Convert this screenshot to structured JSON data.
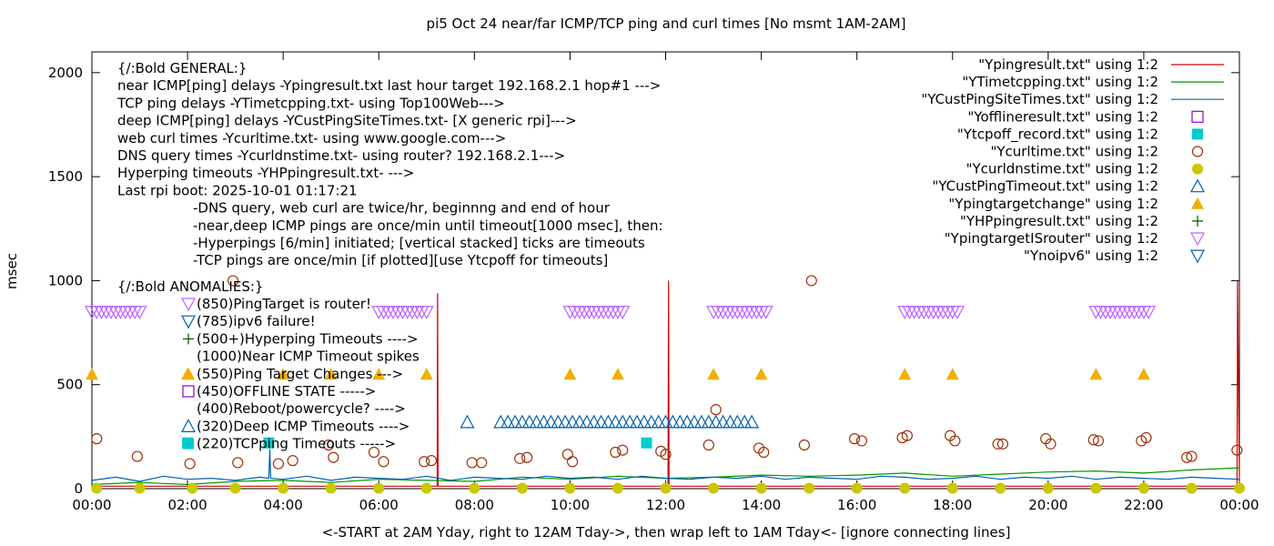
{
  "chart_data": {
    "type": "scatter",
    "title": "pi5 Oct 24  near/far ICMP/TCP ping and curl times [No msmt 1AM-2AM]",
    "xlabel": "<-START at 2AM Yday, right to 12AM Tday->, then wrap left to 1AM Tday<- [ignore connecting lines]",
    "ylabel": "msec",
    "xlim": [
      0,
      24
    ],
    "ylim": [
      0,
      2100
    ],
    "grid": false,
    "legend_position": "top-right",
    "x_ticks": [
      {
        "v": 0,
        "label": "00:00"
      },
      {
        "v": 2,
        "label": "02:00"
      },
      {
        "v": 4,
        "label": "04:00"
      },
      {
        "v": 6,
        "label": "06:00"
      },
      {
        "v": 8,
        "label": "08:00"
      },
      {
        "v": 10,
        "label": "10:00"
      },
      {
        "v": 12,
        "label": "12:00"
      },
      {
        "v": 14,
        "label": "14:00"
      },
      {
        "v": 16,
        "label": "16:00"
      },
      {
        "v": 18,
        "label": "18:00"
      },
      {
        "v": 20,
        "label": "20:00"
      },
      {
        "v": 22,
        "label": "22:00"
      },
      {
        "v": 24,
        "label": "00:00"
      }
    ],
    "y_ticks": [
      {
        "v": 0,
        "label": "0"
      },
      {
        "v": 500,
        "label": "500"
      },
      {
        "v": 1000,
        "label": "1000"
      },
      {
        "v": 1500,
        "label": "1500"
      },
      {
        "v": 2000,
        "label": "2000"
      }
    ],
    "series": [
      {
        "name": "\"Ypingresult.txt\" using 1:2",
        "marker": "line",
        "color": "#cc0000",
        "x": [
          0,
          1.0,
          2.0,
          4.0,
          6.0,
          7.0,
          7.22,
          7.23,
          7.24,
          8.0,
          10.0,
          12.05,
          12.06,
          12.07,
          14.0,
          16.0,
          18.0,
          20.0,
          22.0,
          23.9,
          23.95,
          23.96,
          24.0
        ],
        "y": [
          12,
          12,
          12,
          12,
          12,
          12,
          12,
          940,
          12,
          12,
          12,
          12,
          1000,
          12,
          12,
          12,
          12,
          12,
          12,
          12,
          12,
          1000,
          12
        ]
      },
      {
        "name": "\"YTimetcpping.txt\" using 1:2",
        "marker": "line",
        "color": "#009900",
        "x": [
          0,
          1.0,
          1.5,
          2.0,
          3.0,
          4.0,
          5.0,
          6.0,
          7.0,
          8.0,
          9.0,
          10.0,
          11.0,
          12.0,
          13.0,
          14.0,
          15.0,
          16.0,
          17.0,
          18.0,
          19.0,
          20.0,
          21.0,
          22.0,
          23.0,
          24.0
        ],
        "y": [
          20,
          30,
          25,
          20,
          35,
          40,
          30,
          45,
          40,
          35,
          55,
          45,
          60,
          50,
          55,
          65,
          60,
          65,
          75,
          60,
          70,
          80,
          85,
          75,
          90,
          100
        ]
      },
      {
        "name": "\"YCustPingSiteTimes.txt\" using 1:2",
        "marker": "line",
        "color": "#0060ad",
        "x": [
          0,
          0.5,
          1.0,
          1.5,
          2.0,
          2.5,
          3.0,
          3.5,
          3.7,
          3.72,
          3.74,
          4.0,
          4.5,
          5.0,
          5.5,
          6.0,
          6.5,
          7.0,
          7.5,
          8.0,
          8.5,
          9.0,
          9.5,
          10.0,
          10.5,
          11.0,
          11.5,
          12.0,
          12.5,
          13.0,
          13.5,
          14.0,
          14.5,
          15.0,
          15.5,
          16.0,
          16.5,
          17.0,
          17.5,
          18.0,
          18.5,
          19.0,
          19.5,
          20.0,
          20.5,
          21.0,
          21.5,
          22.0,
          22.5,
          23.0,
          23.5,
          24.0
        ],
        "y": [
          40,
          55,
          35,
          60,
          45,
          50,
          40,
          55,
          50,
          190,
          50,
          45,
          60,
          40,
          55,
          50,
          45,
          60,
          40,
          55,
          50,
          45,
          60,
          50,
          55,
          45,
          60,
          50,
          45,
          55,
          50,
          60,
          45,
          55,
          50,
          45,
          60,
          55,
          45,
          50,
          60,
          45,
          55,
          50,
          60,
          45,
          55,
          50,
          45,
          55,
          50,
          45
        ]
      },
      {
        "name": "\"Yofflineresult.txt\" using 1:2",
        "marker": "open-square",
        "color": "#9400d3",
        "x": [],
        "y": []
      },
      {
        "name": "\"Ytcpoff_record.txt\" using 1:2",
        "marker": "filled-square",
        "color": "#00cccc",
        "x": [
          2.0,
          3.7,
          11.6
        ],
        "y": [
          220,
          220,
          220
        ]
      },
      {
        "name": "\"Ycurltime.txt\" using 1:2",
        "marker": "open-circle",
        "color": "#a0320a",
        "x": [
          0.1,
          0.95,
          2.05,
          2.95,
          3.05,
          3.9,
          4.2,
          4.95,
          5.05,
          5.9,
          6.1,
          6.95,
          7.1,
          7.95,
          8.15,
          8.95,
          9.1,
          9.95,
          10.05,
          10.95,
          11.1,
          11.9,
          12.0,
          12.9,
          13.05,
          13.95,
          14.05,
          14.9,
          15.05,
          15.95,
          16.1,
          16.95,
          17.05,
          17.95,
          18.05,
          18.95,
          19.05,
          19.95,
          20.05,
          20.95,
          21.05,
          21.95,
          22.05,
          22.9,
          23.0,
          23.95
        ],
        "y": [
          240,
          155,
          120,
          1000,
          125,
          120,
          135,
          210,
          150,
          175,
          130,
          130,
          135,
          125,
          125,
          145,
          150,
          165,
          130,
          175,
          185,
          180,
          165,
          210,
          380,
          195,
          175,
          210,
          1000,
          240,
          230,
          245,
          255,
          255,
          230,
          215,
          215,
          240,
          215,
          235,
          230,
          230,
          245,
          150,
          155,
          185
        ]
      },
      {
        "name": "\"Ycurldnstime.txt\" using 1:2",
        "marker": "filled-circle",
        "color": "#c8c800",
        "x": [
          0.1,
          1.0,
          2.1,
          3.0,
          4.0,
          5.0,
          6.0,
          7.0,
          8.0,
          9.0,
          10.0,
          11.0,
          12.0,
          13.0,
          14.0,
          15.0,
          16.0,
          17.0,
          18.0,
          19.0,
          20.0,
          21.0,
          22.0,
          23.0,
          24.0
        ],
        "y": [
          2,
          2,
          2,
          2,
          2,
          2,
          2,
          2,
          2,
          2,
          2,
          2,
          2,
          2,
          2,
          2,
          2,
          2,
          2,
          2,
          2,
          2,
          2,
          2,
          2
        ]
      },
      {
        "name": "\"YCustPingTimeout.txt\" using 1:2",
        "marker": "open-triangle-up",
        "color": "#0060ad",
        "x": [
          7.85,
          8.55,
          8.7,
          8.85,
          9.0,
          9.15,
          9.3,
          9.45,
          9.6,
          9.75,
          9.9,
          10.05,
          10.2,
          10.35,
          10.5,
          10.65,
          10.8,
          10.95,
          11.1,
          11.25,
          11.4,
          11.55,
          11.7,
          11.85,
          12.0,
          12.15,
          12.3,
          12.45,
          12.6,
          12.75,
          12.9,
          13.05,
          13.2,
          13.35,
          13.5,
          13.65,
          13.8
        ],
        "y": [
          320,
          320,
          320,
          320,
          320,
          320,
          320,
          320,
          320,
          320,
          320,
          320,
          320,
          320,
          320,
          320,
          320,
          320,
          320,
          320,
          320,
          320,
          320,
          320,
          320,
          320,
          320,
          320,
          320,
          320,
          320,
          320,
          320,
          320,
          320,
          320,
          320
        ]
      },
      {
        "name": "\"Ypingtargetchange\" using 1:2",
        "marker": "filled-triangle-up",
        "color": "#f0b000",
        "x": [
          0,
          2.0,
          4.0,
          5.0,
          6.0,
          7.0,
          10.0,
          11.0,
          13.0,
          14.0,
          17.0,
          18.0,
          21.0,
          22.0
        ],
        "y": [
          550,
          550,
          550,
          550,
          550,
          550,
          550,
          550,
          550,
          550,
          550,
          550,
          550,
          550
        ]
      },
      {
        "name": "\"YHPpingresult.txt\" using 1:2",
        "marker": "plus",
        "color": "#006400",
        "x": [],
        "y": []
      },
      {
        "name": "\"YpingtargetISrouter\" using 1:2",
        "marker": "open-triangle-down",
        "color": "#bb66ff",
        "x": [
          0,
          0.1,
          0.2,
          0.3,
          0.4,
          0.5,
          0.6,
          0.7,
          0.8,
          0.9,
          1.0,
          6.0,
          6.1,
          6.2,
          6.3,
          6.4,
          6.5,
          6.6,
          6.7,
          6.8,
          6.9,
          7.0,
          10.0,
          10.1,
          10.2,
          10.3,
          10.4,
          10.5,
          10.6,
          10.7,
          10.8,
          10.9,
          11.0,
          11.1,
          13.0,
          13.1,
          13.2,
          13.3,
          13.4,
          13.5,
          13.6,
          13.7,
          13.8,
          13.9,
          14.0,
          14.1,
          17.0,
          17.1,
          17.2,
          17.3,
          17.4,
          17.5,
          17.6,
          17.7,
          17.8,
          17.9,
          18.0,
          18.1,
          21.0,
          21.1,
          21.2,
          21.3,
          21.4,
          21.5,
          21.6,
          21.7,
          21.8,
          21.9,
          22.0,
          22.1
        ],
        "y": [
          850,
          850,
          850,
          850,
          850,
          850,
          850,
          850,
          850,
          850,
          850,
          850,
          850,
          850,
          850,
          850,
          850,
          850,
          850,
          850,
          850,
          850,
          850,
          850,
          850,
          850,
          850,
          850,
          850,
          850,
          850,
          850,
          850,
          850,
          850,
          850,
          850,
          850,
          850,
          850,
          850,
          850,
          850,
          850,
          850,
          850,
          850,
          850,
          850,
          850,
          850,
          850,
          850,
          850,
          850,
          850,
          850,
          850,
          850,
          850,
          850,
          850,
          850,
          850,
          850,
          850,
          850,
          850,
          850,
          850
        ]
      },
      {
        "name": "\"Ynoipv6\" using 1:2",
        "marker": "open-triangle-down",
        "color": "#0060ad",
        "x": [],
        "y": []
      }
    ],
    "annotations": {
      "general": [
        "{/:Bold GENERAL:}",
        "near ICMP[ping] delays -Ypingresult.txt last hour target 192.168.2.1 hop#1 --->",
        "TCP ping delays -YTimetcpping.txt- using Top100Web--->",
        "deep ICMP[ping] delays -YCustPingSiteTimes.txt- [X generic rpi]--->",
        "web curl times -Ycurltime.txt- using www.google.com--->",
        "DNS query times -Ycurldnstime.txt- using router? 192.168.2.1--->",
        "Hyperping timeouts -YHPpingresult.txt- --->",
        "Last rpi boot: 2025-10-01 01:17:21"
      ],
      "notes": [
        "-DNS query, web curl are twice/hr, beginnng and end of hour",
        "-near,deep ICMP pings are once/min until timeout[1000 msec], then:",
        "  -Hyperpings [6/min] initiated; [vertical stacked] ticks are timeouts",
        "-TCP pings are once/min [if plotted][use Ytcpoff for timeouts]"
      ],
      "anomalies_title": "{/:Bold ANOMALIES:}",
      "anomalies": [
        {
          "marker": "open-triangle-down",
          "color": "#bb66ff",
          "text": "(850)PingTarget is router!"
        },
        {
          "marker": "open-triangle-down",
          "color": "#0060ad",
          "text": "(785)ipv6 failure!"
        },
        {
          "marker": "plus",
          "color": "#006400",
          "text": "(500+)Hyperping Timeouts ---->"
        },
        {
          "marker": "none",
          "color": "#000000",
          "text": "(1000)Near ICMP Timeout spikes"
        },
        {
          "marker": "filled-triangle-up",
          "color": "#f0b000",
          "text": "(550)Ping Target Changes --->"
        },
        {
          "marker": "open-square",
          "color": "#9400d3",
          "text": "(450)OFFLINE STATE ----->"
        },
        {
          "marker": "none",
          "color": "#000000",
          "text": "(400)Reboot/powercycle? ---->"
        },
        {
          "marker": "open-triangle-up",
          "color": "#0060ad",
          "text": "(320)Deep ICMP Timeouts ---->"
        },
        {
          "marker": "filled-square",
          "color": "#00cccc",
          "text": "(220)TCPping Timeouts ----->"
        }
      ]
    }
  }
}
